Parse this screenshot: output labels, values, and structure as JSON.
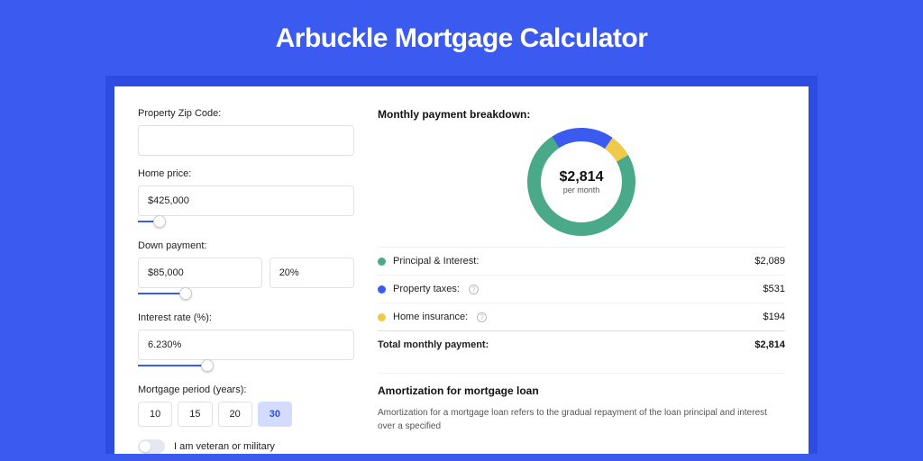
{
  "colors": {
    "page_bg": "#3a5af0",
    "band_bg": "#2d4de0",
    "card_bg": "#ffffff",
    "accent": "#3a5af0",
    "text": "#222222",
    "muted": "#555555"
  },
  "title": "Arbuckle Mortgage Calculator",
  "form": {
    "zip": {
      "label": "Property Zip Code:",
      "value": ""
    },
    "home_price": {
      "label": "Home price:",
      "value": "$425,000",
      "slider_pct": 10
    },
    "down_payment": {
      "label": "Down payment:",
      "value": "$85,000",
      "pct": "20%",
      "slider_pct": 22
    },
    "interest_rate": {
      "label": "Interest rate (%):",
      "value": "6.230%",
      "slider_pct": 32
    },
    "period": {
      "label": "Mortgage period (years):",
      "options": [
        "10",
        "15",
        "20",
        "30"
      ],
      "selected_index": 3
    },
    "veteran": {
      "label": "I am veteran or military",
      "value": false
    }
  },
  "breakdown": {
    "title": "Monthly payment breakdown:",
    "center": {
      "amount": "$2,814",
      "sub": "per month"
    },
    "donut": {
      "size": 120,
      "stroke": 15,
      "segments": [
        {
          "key": "pi",
          "color": "#4aa989",
          "pct": 74.2
        },
        {
          "key": "tax",
          "color": "#3a5af0",
          "pct": 18.9
        },
        {
          "key": "ins",
          "color": "#f0c94a",
          "pct": 6.9
        }
      ]
    },
    "rows": [
      {
        "dot": "#4aa989",
        "label": "Principal & Interest:",
        "info": false,
        "value": "$2,089"
      },
      {
        "dot": "#3a5af0",
        "label": "Property taxes:",
        "info": true,
        "value": "$531"
      },
      {
        "dot": "#f0c94a",
        "label": "Home insurance:",
        "info": true,
        "value": "$194"
      }
    ],
    "total": {
      "label": "Total monthly payment:",
      "value": "$2,814"
    }
  },
  "amortization": {
    "title": "Amortization for mortgage loan",
    "text": "Amortization for a mortgage loan refers to the gradual repayment of the loan principal and interest over a specified"
  }
}
